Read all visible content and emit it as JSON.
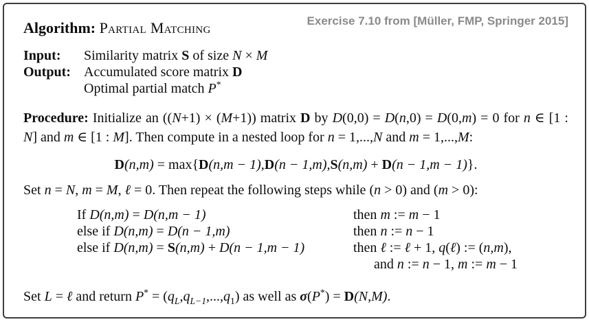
{
  "header": {
    "title_label": "Algorithm: ",
    "title_name": "Partial Matching",
    "exercise_note": "Exercise 7.10 from [Müller, FMP, Springer 2015]"
  },
  "colors": {
    "background": "#ffffff",
    "border": "#3d3d3d",
    "text": "#0d0d0d",
    "exercise_note_gray": "#8a8a8a"
  },
  "io": {
    "input_label": "Input:",
    "input_runs": [
      {
        "t": "Similarity matrix ",
        "c": ""
      },
      {
        "t": "S",
        "c": "b"
      },
      {
        "t": " of size ",
        "c": ""
      },
      {
        "t": "N",
        "c": "i"
      },
      {
        "t": " × ",
        "c": ""
      },
      {
        "t": "M",
        "c": "i"
      }
    ],
    "output_label": "Output:",
    "output_line1_runs": [
      {
        "t": "Accumulated score matrix ",
        "c": ""
      },
      {
        "t": "D",
        "c": "b"
      }
    ],
    "output_line2_runs": [
      {
        "t": "Optimal partial match ",
        "c": ""
      },
      {
        "t": "P",
        "c": "i"
      },
      {
        "t": "*",
        "c": "sup"
      }
    ]
  },
  "procedure": {
    "runs": [
      {
        "t": "Procedure: ",
        "c": "b"
      },
      {
        "t": "Initialize an ((",
        "c": ""
      },
      {
        "t": "N",
        "c": "i"
      },
      {
        "t": "+1) × (",
        "c": ""
      },
      {
        "t": "M",
        "c": "i"
      },
      {
        "t": "+1)) matrix ",
        "c": ""
      },
      {
        "t": "D",
        "c": "b"
      },
      {
        "t": " by ",
        "c": ""
      },
      {
        "t": "D",
        "c": "i"
      },
      {
        "t": "(0,0) = ",
        "c": ""
      },
      {
        "t": "D",
        "c": "i"
      },
      {
        "t": "(",
        "c": ""
      },
      {
        "t": "n",
        "c": "i"
      },
      {
        "t": ",0) = ",
        "c": ""
      },
      {
        "t": "D",
        "c": "i"
      },
      {
        "t": "(0,",
        "c": ""
      },
      {
        "t": "m",
        "c": "i"
      },
      {
        "t": ") = 0 for ",
        "c": ""
      },
      {
        "t": "n",
        "c": "i"
      },
      {
        "t": " ∈ [1 : ",
        "c": ""
      },
      {
        "t": "N",
        "c": "i"
      },
      {
        "t": "] and ",
        "c": ""
      },
      {
        "t": "m",
        "c": "i"
      },
      {
        "t": " ∈ [1 : ",
        "c": ""
      },
      {
        "t": "M",
        "c": "i"
      },
      {
        "t": "]. Then compute in a nested loop for ",
        "c": ""
      },
      {
        "t": "n",
        "c": "i"
      },
      {
        "t": " = 1,...,",
        "c": ""
      },
      {
        "t": "N",
        "c": "i"
      },
      {
        "t": " and ",
        "c": ""
      },
      {
        "t": "m",
        "c": "i"
      },
      {
        "t": " = 1,...,",
        "c": ""
      },
      {
        "t": "M",
        "c": "i"
      },
      {
        "t": ":",
        "c": ""
      }
    ]
  },
  "formula": {
    "runs": [
      {
        "t": "D",
        "c": "b"
      },
      {
        "t": "(n,m)",
        "c": "i"
      },
      {
        "t": " = max{",
        "c": ""
      },
      {
        "t": "D",
        "c": "b"
      },
      {
        "t": "(n,m − 1)",
        "c": "i"
      },
      {
        "t": ",",
        "c": ""
      },
      {
        "t": "D",
        "c": "b"
      },
      {
        "t": "(n − 1,m)",
        "c": "i"
      },
      {
        "t": ",",
        "c": ""
      },
      {
        "t": "S",
        "c": "b"
      },
      {
        "t": "(n,m)",
        "c": "i"
      },
      {
        "t": " + ",
        "c": ""
      },
      {
        "t": "D",
        "c": "b"
      },
      {
        "t": "(n − 1,m − 1)",
        "c": "i"
      },
      {
        "t": "}.",
        "c": ""
      }
    ]
  },
  "set_line": {
    "runs": [
      {
        "t": "Set ",
        "c": ""
      },
      {
        "t": "n",
        "c": "i"
      },
      {
        "t": " = ",
        "c": ""
      },
      {
        "t": "N",
        "c": "i"
      },
      {
        "t": ", ",
        "c": ""
      },
      {
        "t": "m",
        "c": "i"
      },
      {
        "t": " = ",
        "c": ""
      },
      {
        "t": "M",
        "c": "i"
      },
      {
        "t": ", ",
        "c": ""
      },
      {
        "t": "ℓ",
        "c": "i"
      },
      {
        "t": " = 0. Then repeat the following steps while (",
        "c": ""
      },
      {
        "t": "n",
        "c": "i"
      },
      {
        "t": " > 0) and (",
        "c": ""
      },
      {
        "t": "m",
        "c": "i"
      },
      {
        "t": " > 0):",
        "c": ""
      }
    ]
  },
  "cases": {
    "rows": [
      {
        "left": [
          {
            "t": "If ",
            "c": ""
          },
          {
            "t": "D(n,m)",
            "c": "i"
          },
          {
            "t": " = ",
            "c": ""
          },
          {
            "t": "D(n,m − 1)",
            "c": "i"
          }
        ],
        "right": [
          {
            "t": "then ",
            "c": ""
          },
          {
            "t": "m",
            "c": "i"
          },
          {
            "t": " := ",
            "c": ""
          },
          {
            "t": "m",
            "c": "i"
          },
          {
            "t": " − 1",
            "c": ""
          }
        ]
      },
      {
        "left": [
          {
            "t": "else if ",
            "c": ""
          },
          {
            "t": "D(n,m)",
            "c": "i"
          },
          {
            "t": " = ",
            "c": ""
          },
          {
            "t": "D(n − 1,m)",
            "c": "i"
          }
        ],
        "right": [
          {
            "t": "then ",
            "c": ""
          },
          {
            "t": "n",
            "c": "i"
          },
          {
            "t": " := ",
            "c": ""
          },
          {
            "t": "n",
            "c": "i"
          },
          {
            "t": " − 1",
            "c": ""
          }
        ]
      },
      {
        "left": [
          {
            "t": "else if ",
            "c": ""
          },
          {
            "t": "D(n,m)",
            "c": "i"
          },
          {
            "t": " = ",
            "c": ""
          },
          {
            "t": "S",
            "c": "b"
          },
          {
            "t": "(n,m)",
            "c": "i"
          },
          {
            "t": " + ",
            "c": ""
          },
          {
            "t": "D(n − 1,m − 1)",
            "c": "i"
          }
        ],
        "right": [
          {
            "t": "then ",
            "c": ""
          },
          {
            "t": "ℓ",
            "c": "i"
          },
          {
            "t": " := ",
            "c": ""
          },
          {
            "t": "ℓ",
            "c": "i"
          },
          {
            "t": " + 1, ",
            "c": ""
          },
          {
            "t": "q",
            "c": "i"
          },
          {
            "t": "(",
            "c": ""
          },
          {
            "t": "ℓ",
            "c": "i"
          },
          {
            "t": ") := (",
            "c": ""
          },
          {
            "t": "n,m",
            "c": "i"
          },
          {
            "t": "),",
            "c": ""
          }
        ]
      },
      {
        "left": [],
        "right": [
          {
            "t": "and ",
            "c": ""
          },
          {
            "t": "n",
            "c": "i"
          },
          {
            "t": " := ",
            "c": ""
          },
          {
            "t": "n",
            "c": "i"
          },
          {
            "t": " − 1, ",
            "c": ""
          },
          {
            "t": "m",
            "c": "i"
          },
          {
            "t": " := ",
            "c": ""
          },
          {
            "t": "m",
            "c": "i"
          },
          {
            "t": " − 1",
            "c": ""
          }
        ]
      }
    ]
  },
  "final_line": {
    "runs": [
      {
        "t": "Set ",
        "c": ""
      },
      {
        "t": "L",
        "c": "i"
      },
      {
        "t": " = ",
        "c": ""
      },
      {
        "t": "ℓ",
        "c": "i"
      },
      {
        "t": " and return ",
        "c": ""
      },
      {
        "t": "P",
        "c": "i"
      },
      {
        "t": "*",
        "c": "sup"
      },
      {
        "t": " = (",
        "c": ""
      },
      {
        "t": "q",
        "c": "i"
      },
      {
        "t": "L",
        "c": "i sub"
      },
      {
        "t": ",",
        "c": ""
      },
      {
        "t": "q",
        "c": "i"
      },
      {
        "t": "L−1",
        "c": "i sub"
      },
      {
        "t": ",...,",
        "c": ""
      },
      {
        "t": "q",
        "c": "i"
      },
      {
        "t": "1",
        "c": "sub"
      },
      {
        "t": ") as well as ",
        "c": ""
      },
      {
        "t": "σ",
        "c": "bi"
      },
      {
        "t": "(",
        "c": ""
      },
      {
        "t": "P",
        "c": "i"
      },
      {
        "t": "*",
        "c": "sup"
      },
      {
        "t": ") = ",
        "c": ""
      },
      {
        "t": "D",
        "c": "b"
      },
      {
        "t": "(N,M)",
        "c": "i"
      },
      {
        "t": ".",
        "c": ""
      }
    ]
  }
}
